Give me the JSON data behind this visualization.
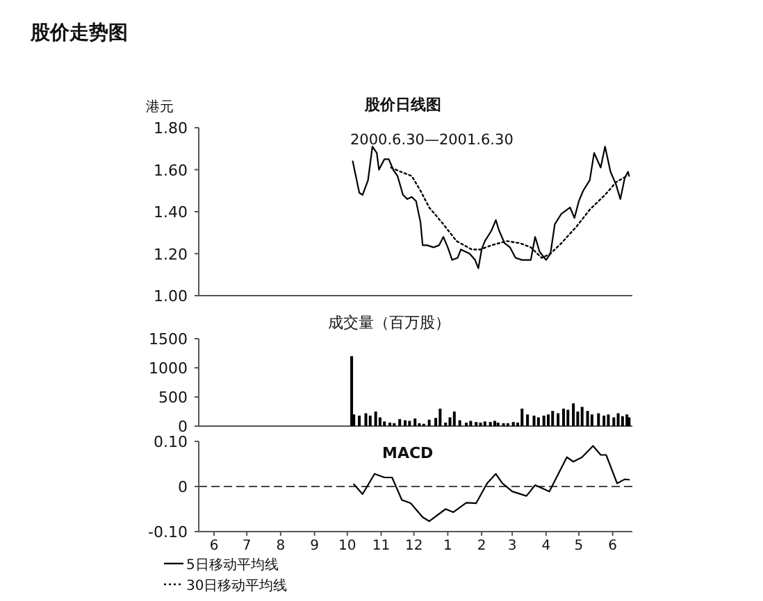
{
  "chart_data": [
    {
      "type": "line",
      "title": "股价日线图",
      "subtitle": "2000.6.30—2001.6.30",
      "ylabel": "港元",
      "annotations": [
        "股价走势图"
      ],
      "xlim": [
        "2000-06-01",
        "2001-07-03"
      ],
      "ylim": [
        1.0,
        1.8
      ],
      "yticks": [
        {
          "value": 1.8,
          "label": "1.80"
        },
        {
          "value": 1.6,
          "label": "1.60"
        },
        {
          "value": 1.4,
          "label": "1.40"
        },
        {
          "value": 1.2,
          "label": "1.20"
        },
        {
          "value": 1.0,
          "label": "1.00"
        }
      ],
      "tick_labels": "y",
      "legend": "bottom left",
      "series": [
        {
          "name": "5日移动平均线",
          "color": "#000000",
          "line_style": "solid",
          "x": [
            "2000-10-20",
            "2000-10-26",
            "2000-10-29",
            "2000-11-03",
            "2000-11-07",
            "2000-11-11",
            "2000-11-13",
            "2000-11-18",
            "2000-11-22",
            "2000-11-26",
            "2000-11-30",
            "2000-12-05",
            "2000-12-09",
            "2000-12-13",
            "2000-12-17",
            "2000-12-21",
            "2000-12-23",
            "2000-12-27",
            "2001-01-02",
            "2001-01-07",
            "2001-01-11",
            "2001-01-15",
            "2001-01-19",
            "2001-01-24",
            "2001-01-27",
            "2001-02-04",
            "2001-02-09",
            "2001-02-12",
            "2001-02-15",
            "2001-02-18",
            "2001-02-24",
            "2001-02-28",
            "2001-03-03",
            "2001-03-08",
            "2001-03-13",
            "2001-03-18",
            "2001-03-24",
            "2001-04-01",
            "2001-04-05",
            "2001-04-09",
            "2001-04-15",
            "2001-04-19",
            "2001-04-23",
            "2001-04-29",
            "2001-05-07",
            "2001-05-11",
            "2001-05-15",
            "2001-05-19",
            "2001-05-25",
            "2001-05-29",
            "2001-06-04",
            "2001-06-08",
            "2001-06-13",
            "2001-06-18",
            "2001-06-22",
            "2001-06-26",
            "2001-06-29",
            "2001-06-30"
          ],
          "values": [
            1.64,
            1.49,
            1.48,
            1.55,
            1.71,
            1.68,
            1.6,
            1.65,
            1.65,
            1.6,
            1.57,
            1.48,
            1.46,
            1.47,
            1.45,
            1.35,
            1.24,
            1.24,
            1.23,
            1.24,
            1.28,
            1.23,
            1.17,
            1.18,
            1.22,
            1.2,
            1.17,
            1.13,
            1.22,
            1.26,
            1.31,
            1.36,
            1.31,
            1.25,
            1.23,
            1.18,
            1.17,
            1.17,
            1.28,
            1.21,
            1.17,
            1.2,
            1.34,
            1.39,
            1.42,
            1.37,
            1.45,
            1.5,
            1.55,
            1.68,
            1.61,
            1.71,
            1.59,
            1.53,
            1.46,
            1.56,
            1.59,
            1.57
          ]
        },
        {
          "name": "30日移动平均线",
          "color": "#000000",
          "line_style": "dotted",
          "x": [
            "2000-11-24",
            "2000-12-03",
            "2000-12-13",
            "2000-12-21",
            "2000-12-29",
            "2001-01-11",
            "2001-01-23",
            "2001-02-06",
            "2001-02-14",
            "2001-02-24",
            "2001-03-10",
            "2001-03-22",
            "2001-04-01",
            "2001-04-11",
            "2001-04-19",
            "2001-04-29",
            "2001-05-13",
            "2001-05-25",
            "2001-06-08",
            "2001-06-18",
            "2001-06-28"
          ],
          "values": [
            1.61,
            1.59,
            1.57,
            1.5,
            1.42,
            1.34,
            1.26,
            1.22,
            1.22,
            1.24,
            1.26,
            1.25,
            1.23,
            1.18,
            1.2,
            1.25,
            1.33,
            1.41,
            1.48,
            1.54,
            1.57
          ]
        }
      ]
    },
    {
      "type": "bar",
      "title": "成交量（百万股）",
      "xlim": [
        "2000-06-01",
        "2001-07-03"
      ],
      "ylim": [
        0,
        1500
      ],
      "yticks": [
        0,
        500,
        1000,
        1500
      ],
      "tick_labels": "y",
      "color": "#000000",
      "x": [
        "2000-10-19",
        "2000-10-21",
        "2000-10-26",
        "2000-11-01",
        "2000-11-05",
        "2000-11-10",
        "2000-11-14",
        "2000-11-18",
        "2000-11-23",
        "2000-11-27",
        "2000-12-02",
        "2000-12-07",
        "2000-12-11",
        "2000-12-16",
        "2000-12-20",
        "2000-12-24",
        "2000-12-29",
        "2001-01-04",
        "2001-01-08",
        "2001-01-13",
        "2001-01-17",
        "2001-01-21",
        "2001-01-26",
        "2001-02-01",
        "2001-02-05",
        "2001-02-10",
        "2001-02-14",
        "2001-02-18",
        "2001-02-23",
        "2001-02-27",
        "2001-03-02",
        "2001-03-07",
        "2001-03-11",
        "2001-03-16",
        "2001-03-20",
        "2001-03-24",
        "2001-03-29",
        "2001-04-04",
        "2001-04-08",
        "2001-04-13",
        "2001-04-17",
        "2001-04-21",
        "2001-04-26",
        "2001-05-01",
        "2001-05-05",
        "2001-05-10",
        "2001-05-14",
        "2001-05-18",
        "2001-05-23",
        "2001-05-27",
        "2001-06-02",
        "2001-06-07",
        "2001-06-11",
        "2001-06-16",
        "2001-06-20",
        "2001-06-24",
        "2001-06-28",
        "2001-06-30"
      ],
      "values": [
        1200,
        200,
        180,
        220,
        180,
        250,
        150,
        80,
        60,
        50,
        120,
        100,
        90,
        130,
        50,
        40,
        110,
        140,
        300,
        60,
        150,
        250,
        100,
        60,
        90,
        70,
        60,
        80,
        70,
        90,
        60,
        50,
        50,
        70,
        60,
        300,
        200,
        180,
        150,
        180,
        200,
        260,
        220,
        300,
        280,
        390,
        250,
        330,
        260,
        200,
        220,
        180,
        200,
        150,
        220,
        170,
        200,
        150
      ]
    },
    {
      "type": "line",
      "title": "MACD",
      "xlim": [
        "2000-06-01",
        "2001-07-03"
      ],
      "xticks": [
        {
          "value": "2000-06-15",
          "label": "6"
        },
        {
          "value": "2000-07-15",
          "label": "7"
        },
        {
          "value": "2000-08-15",
          "label": "8"
        },
        {
          "value": "2000-09-15",
          "label": "9"
        },
        {
          "value": "2000-10-15",
          "label": "10"
        },
        {
          "value": "2000-11-15",
          "label": "11"
        },
        {
          "value": "2000-12-15",
          "label": "12"
        },
        {
          "value": "2001-01-15",
          "label": "1"
        },
        {
          "value": "2001-02-15",
          "label": "2"
        },
        {
          "value": "2001-03-15",
          "label": "3"
        },
        {
          "value": "2001-04-15",
          "label": "4"
        },
        {
          "value": "2001-05-15",
          "label": "5"
        },
        {
          "value": "2001-06-15",
          "label": "6"
        }
      ],
      "ylim": [
        -0.1,
        0.1
      ],
      "yticks": [
        {
          "value": -0.1,
          "label": "-0.10"
        },
        0,
        {
          "value": 0.1,
          "label": "0.10"
        }
      ],
      "ref_lines": [
        {
          "axis": "y",
          "value": 0,
          "line_style": "dashed",
          "color": "#444444"
        }
      ],
      "series": [
        {
          "color": "#000000",
          "x": [
            "2000-10-21",
            "2000-10-29",
            "2000-11-09",
            "2000-11-18",
            "2000-11-25",
            "2000-12-04",
            "2000-12-12",
            "2000-12-23",
            "2000-12-29",
            "2001-01-13",
            "2001-01-20",
            "2001-02-01",
            "2001-02-10",
            "2001-02-20",
            "2001-02-28",
            "2001-03-06",
            "2001-03-15",
            "2001-03-28",
            "2001-04-05",
            "2001-04-18",
            "2001-05-04",
            "2001-05-10",
            "2001-05-18",
            "2001-05-28",
            "2001-06-04",
            "2001-06-09",
            "2001-06-19",
            "2001-06-26",
            "2001-06-30"
          ],
          "values": [
            0.005,
            -0.017,
            0.028,
            0.02,
            0.02,
            -0.03,
            -0.037,
            -0.068,
            -0.077,
            -0.05,
            -0.057,
            -0.036,
            -0.037,
            0.007,
            0.028,
            0.007,
            -0.011,
            -0.021,
            0.003,
            -0.011,
            0.065,
            0.055,
            0.065,
            0.09,
            0.07,
            0.07,
            0.007,
            0.016,
            0.015
          ]
        }
      ]
    }
  ]
}
